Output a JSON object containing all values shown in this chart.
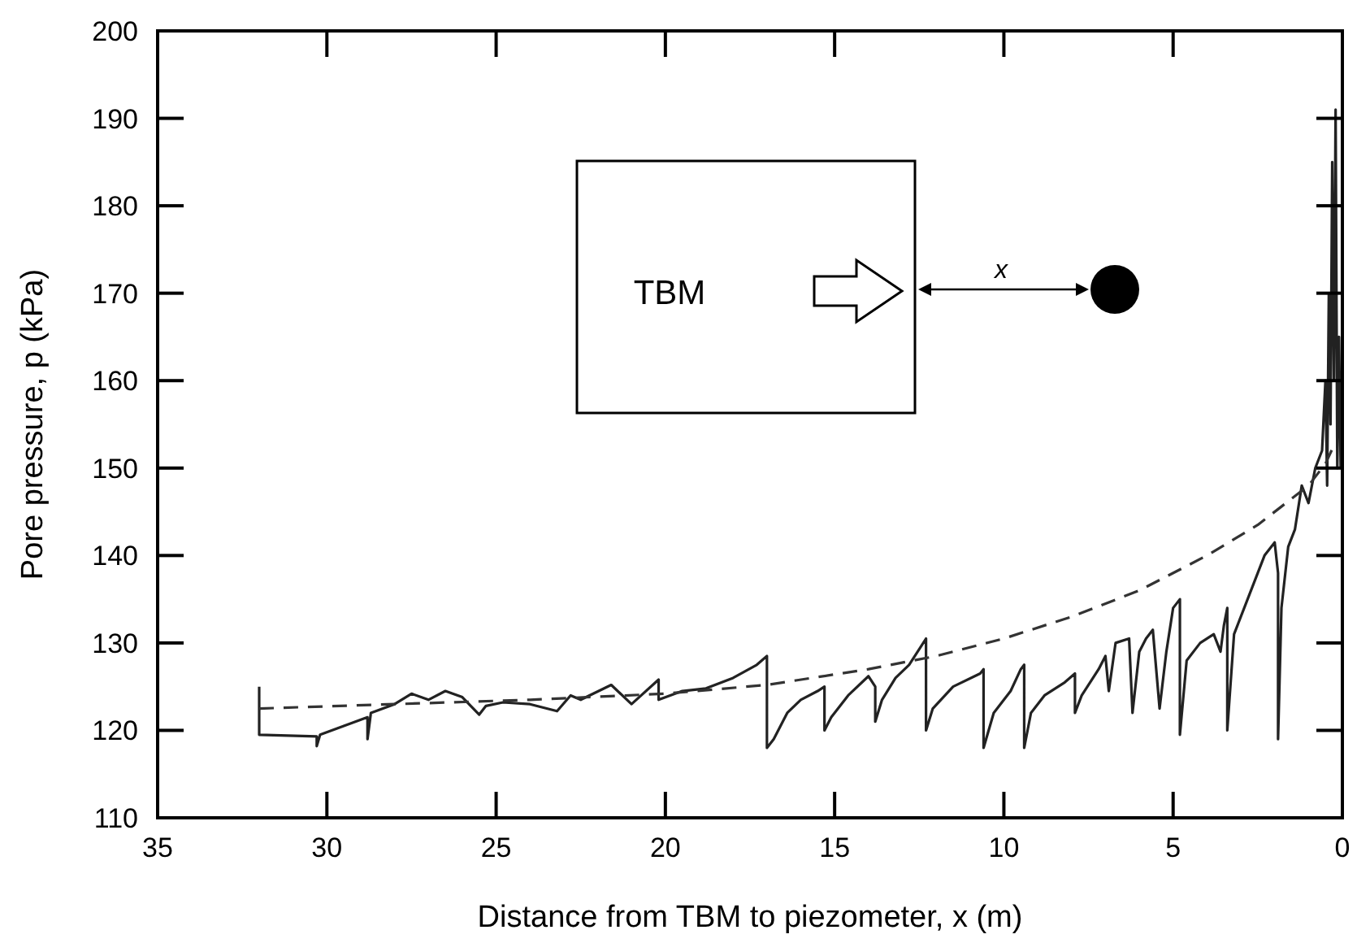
{
  "chart_data": {
    "type": "line",
    "xlabel": "Distance from TBM to piezometer, x (m)",
    "ylabel": "Pore pressure, p (kPa)",
    "xlim": [
      35,
      0
    ],
    "xticks": [
      35,
      30,
      25,
      20,
      15,
      10,
      5,
      0
    ],
    "ylim": [
      110,
      200
    ],
    "yticks": [
      110,
      120,
      130,
      140,
      150,
      160,
      170,
      180,
      190,
      200
    ],
    "grid": false,
    "marker": "none",
    "annotations": [
      "TBM",
      "x"
    ],
    "series": [
      {
        "color": "#222222",
        "line_style": "solid",
        "x": [
          32,
          32,
          30.3,
          30.3,
          30.2,
          29.5,
          28.8,
          28.8,
          28.7,
          28,
          27.5,
          27,
          26.5,
          26,
          25.5,
          25.3,
          24.8,
          24,
          23.2,
          22.8,
          22.5,
          21.6,
          21,
          20.2,
          20.2,
          19.5,
          18.8,
          18,
          17.3,
          17,
          17,
          16.8,
          16.4,
          16,
          15.5,
          15.3,
          15.3,
          15.1,
          14.6,
          14,
          13.8,
          13.8,
          13.6,
          13.2,
          12.8,
          12.3,
          12.3,
          12.1,
          11.5,
          10.7,
          10.6,
          10.6,
          10.3,
          9.8,
          9.5,
          9.4,
          9.4,
          9.2,
          8.8,
          8.2,
          7.9,
          7.9,
          7.7,
          7.2,
          7,
          6.9,
          6.7,
          6.3,
          6.2,
          6,
          5.8,
          5.6,
          5.4,
          5.2,
          5,
          4.8,
          4.8,
          4.6,
          4.2,
          3.8,
          3.6,
          3.5,
          3.4,
          3.4,
          3.2,
          2.8,
          2.5,
          2.3,
          2,
          1.9,
          1.9,
          1.8,
          1.6,
          1.4,
          1.2,
          1,
          0.8,
          0.6,
          0.5,
          0.45,
          0.4,
          0.35,
          0.3,
          0.25,
          0.2,
          0.15,
          0.1,
          0.05
        ],
        "values": [
          125,
          119.5,
          119.3,
          118.2,
          119.5,
          120.5,
          121.5,
          119,
          122,
          123,
          124.2,
          123.5,
          124.5,
          123.8,
          121.8,
          122.8,
          123.2,
          123,
          122.2,
          124,
          123.5,
          125.2,
          123,
          125.8,
          123.5,
          124.5,
          124.8,
          126,
          127.5,
          128.5,
          118,
          119,
          122,
          123.5,
          124.5,
          125,
          120,
          121.5,
          124,
          126.2,
          125,
          121,
          123.5,
          126,
          127.5,
          130.5,
          120,
          122.5,
          125,
          126.5,
          127,
          118,
          122,
          124.5,
          127,
          127.5,
          118,
          122,
          124,
          125.5,
          126.5,
          122,
          124,
          127,
          128.5,
          124.5,
          130,
          130.5,
          122,
          129,
          130.5,
          131.5,
          122.5,
          129,
          134,
          135,
          119.5,
          128,
          130,
          131,
          129,
          132,
          134,
          120,
          131,
          135,
          138,
          140,
          141.5,
          138,
          119,
          134,
          141,
          143,
          148,
          146,
          150,
          152,
          160,
          148,
          170,
          155,
          185,
          160,
          191,
          150,
          165,
          150
        ]
      },
      {
        "color": "#333333",
        "line_style": "dashed",
        "x": [
          32,
          28,
          24,
          20,
          17,
          14,
          12,
          10,
          8,
          6,
          4,
          2.5,
          1.5,
          1,
          0.5,
          0.2
        ],
        "values": [
          122.5,
          123,
          123.5,
          124.2,
          125.2,
          127,
          128.5,
          130.5,
          133,
          136,
          140,
          143.5,
          146.5,
          148,
          150.5,
          153
        ]
      }
    ]
  }
}
